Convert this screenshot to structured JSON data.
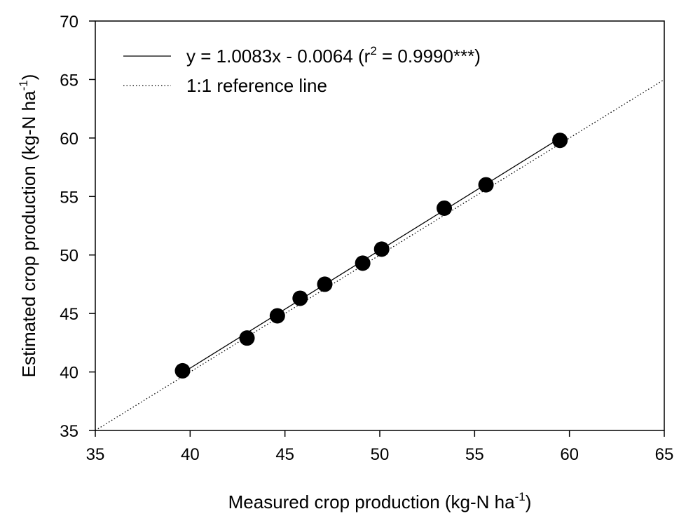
{
  "chart_data": {
    "type": "scatter",
    "xlabel": "Measured crop production (kg-N ha",
    "xlabel_sup": "-1",
    "xlabel_tail": ")",
    "ylabel": "Estimated crop production (kg-N ha",
    "ylabel_sup": "-1",
    "ylabel_tail": ")",
    "xlim": [
      35,
      65
    ],
    "ylim": [
      35,
      70
    ],
    "xticks": [
      "35",
      "40",
      "45",
      "50",
      "55",
      "60",
      "65"
    ],
    "yticks": [
      "35",
      "40",
      "45",
      "50",
      "55",
      "60",
      "65",
      "70"
    ],
    "grid": false,
    "legend_position": "top-left",
    "series": [
      {
        "marker": "filled-circle",
        "color": "#000000",
        "points": [
          {
            "x": 39.6,
            "y": 40.1
          },
          {
            "x": 43.0,
            "y": 42.9
          },
          {
            "x": 44.6,
            "y": 44.8
          },
          {
            "x": 45.8,
            "y": 46.3
          },
          {
            "x": 47.1,
            "y": 47.5
          },
          {
            "x": 49.1,
            "y": 49.3
          },
          {
            "x": 50.1,
            "y": 50.5
          },
          {
            "x": 53.4,
            "y": 54.0
          },
          {
            "x": 55.6,
            "y": 56.0
          },
          {
            "x": 59.5,
            "y": 59.8
          }
        ]
      }
    ],
    "regression_line": {
      "name": "y = 1.0083x - 0.0064 (r",
      "name_sup": "2",
      "name_tail": " = 0.9990***)",
      "slope": 1.0083,
      "intercept": -0.0064,
      "x_range": [
        39.6,
        59.5
      ],
      "style": "solid"
    },
    "reference_line": {
      "name": "1:1 reference line",
      "slope": 1,
      "intercept": 0,
      "style": "dotted"
    }
  }
}
